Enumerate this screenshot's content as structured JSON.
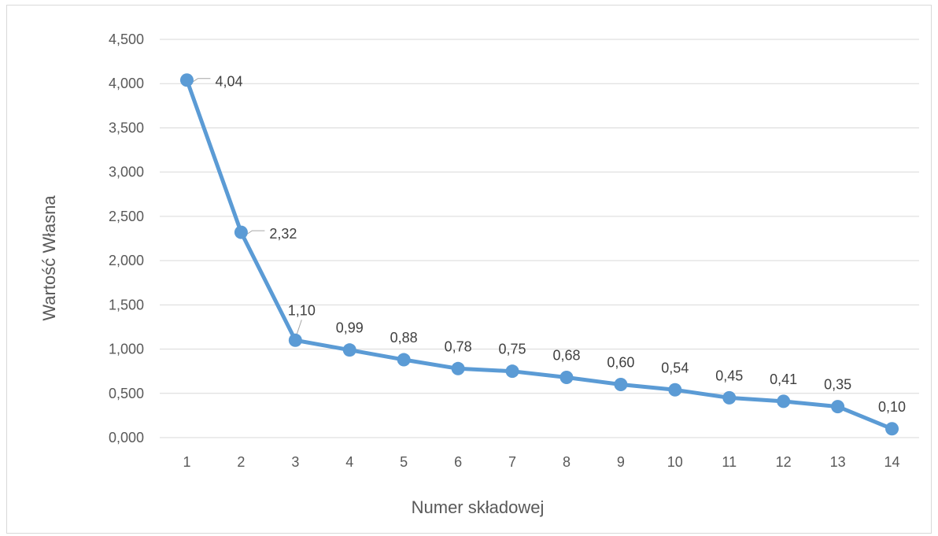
{
  "chart_data": {
    "type": "line",
    "title": "",
    "xlabel": "Numer składowej",
    "ylabel": "Wartość Własna",
    "categories": [
      "1",
      "2",
      "3",
      "4",
      "5",
      "6",
      "7",
      "8",
      "9",
      "10",
      "11",
      "12",
      "13",
      "14"
    ],
    "values": [
      4.04,
      2.32,
      1.1,
      0.99,
      0.88,
      0.78,
      0.75,
      0.68,
      0.6,
      0.54,
      0.45,
      0.41,
      0.35,
      0.1
    ],
    "data_labels": [
      "4,04",
      "2,32",
      "1,10",
      "0,99",
      "0,88",
      "0,78",
      "0,75",
      "0,68",
      "0,60",
      "0,54",
      "0,45",
      "0,41",
      "0,35",
      "0,10"
    ],
    "y_ticks": [
      0,
      0.5,
      1,
      1.5,
      2,
      2.5,
      3,
      3.5,
      4,
      4.5
    ],
    "y_tick_labels": [
      "0,000",
      "0,500",
      "1,000",
      "1,500",
      "2,000",
      "2,500",
      "3,000",
      "3,500",
      "4,000",
      "4,500"
    ],
    "ylim": [
      0,
      4.5
    ],
    "grid": true,
    "legend": "none",
    "line_color": "#5b9bd5",
    "grid_color": "#d9d9d9"
  }
}
